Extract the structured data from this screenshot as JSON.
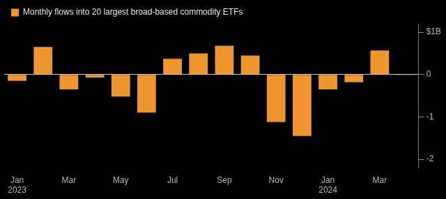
{
  "chart_data": {
    "type": "bar",
    "categories": [
      "Jan 2023",
      null,
      "Mar",
      null,
      "May",
      null,
      "Jul",
      null,
      "Sep",
      null,
      "Nov",
      null,
      "Jan 2024",
      null,
      "Mar",
      null
    ],
    "series": [
      {
        "name": "Monthly flows into 20 largest broad-based commodity ETFs",
        "color": "#f0962e",
        "values": [
          -0.15,
          0.65,
          -0.35,
          -0.07,
          -0.52,
          -0.9,
          0.37,
          0.5,
          0.68,
          0.45,
          -1.12,
          -1.45,
          -0.35,
          -0.18,
          0.57,
          -0.01
        ]
      }
    ],
    "ylim": [
      -2.2,
      1.2
    ],
    "yticks": [
      -2,
      -1,
      0,
      {
        "value": 1,
        "label": "$1B"
      }
    ],
    "grid": false,
    "legend": "top-left"
  }
}
